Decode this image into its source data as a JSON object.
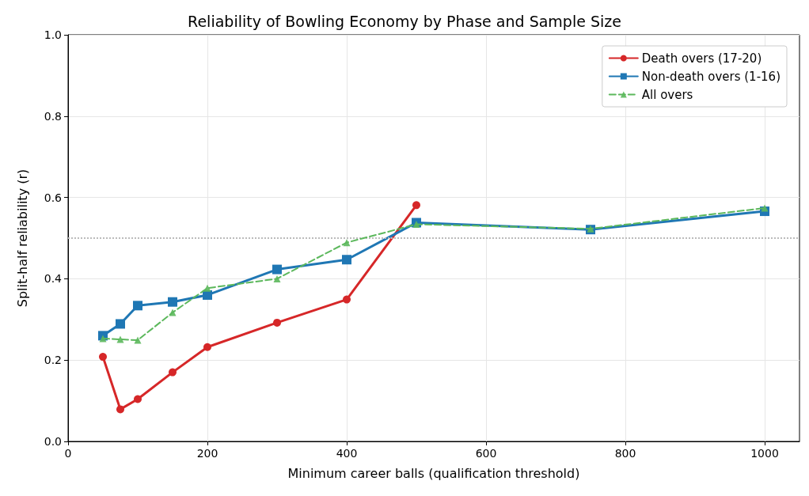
{
  "chart_data": {
    "type": "line",
    "title": "Reliability of Bowling Economy by Phase and Sample Size",
    "xlabel": "Minimum career balls (qualification threshold)",
    "ylabel": "Split-half reliability (r)",
    "xlim": [
      0,
      1050
    ],
    "xticks": [
      0,
      200,
      400,
      600,
      800,
      1000
    ],
    "ylim": [
      0,
      1
    ],
    "yticks": [
      {
        "value": 0,
        "label": "0.0"
      },
      0.2,
      0.4,
      0.6,
      0.8,
      {
        "value": 1,
        "label": "1.0"
      }
    ],
    "grid": true,
    "legend": "top right",
    "ref_lines": [
      {
        "axis": "y",
        "value": 0.5,
        "color": "#bbbbbb",
        "line_style": "dotted"
      }
    ],
    "series": [
      {
        "name": "Death overs (17-20)",
        "color": "#d62728",
        "marker": "circle",
        "line_style": "solid",
        "x": [
          50,
          75,
          100,
          150,
          200,
          300,
          400,
          500
        ],
        "values": [
          0.208,
          0.079,
          0.104,
          0.17,
          0.232,
          0.292,
          0.349,
          0.581
        ]
      },
      {
        "name": "Non-death overs (1-16)",
        "color": "#1f77b4",
        "marker": "square",
        "line_style": "solid",
        "x": [
          50,
          75,
          100,
          150,
          200,
          300,
          400,
          500,
          750,
          1000
        ],
        "values": [
          0.26,
          0.289,
          0.334,
          0.343,
          0.36,
          0.423,
          0.447,
          0.538,
          0.521,
          0.566
        ]
      },
      {
        "name": "All overs",
        "color": "#5cb85c",
        "marker": "triangle",
        "line_style": "dashed",
        "x": [
          50,
          75,
          100,
          150,
          200,
          300,
          400,
          500,
          750,
          1000
        ],
        "values": [
          0.253,
          0.251,
          0.249,
          0.317,
          0.377,
          0.4,
          0.489,
          0.534,
          0.523,
          0.574
        ]
      }
    ]
  }
}
